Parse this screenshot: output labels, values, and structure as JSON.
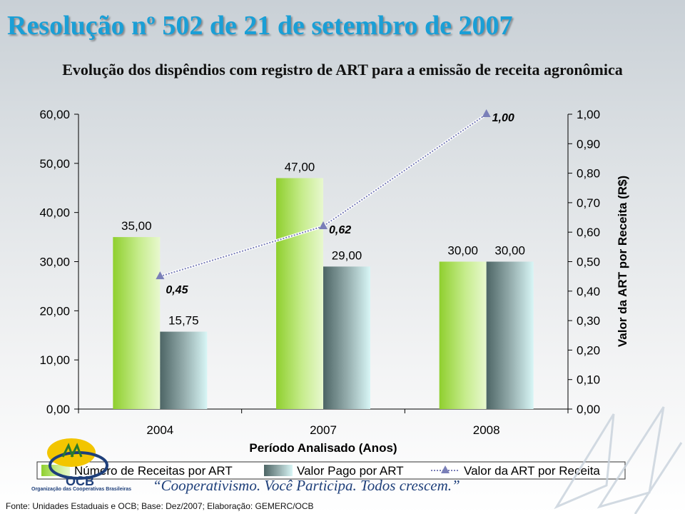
{
  "slide": {
    "title": "Resolução nº 502 de 21 de setembro de 2007",
    "source_text": "Fonte: Unidades Estaduais e OCB; Base: Dez/2007;    Elaboração: GEMERC/OCB",
    "slogan": "“Cooperativismo. Você Participa. Todos crescem.”",
    "logo_word": "OCB",
    "logo_subtext": "Organização das Cooperativas Brasileiras"
  },
  "chart_data": {
    "type": "bar",
    "title": "Evolução dos dispêndios com registro de ART para a emissão de receita agronômica",
    "categories": [
      "2004",
      "2007",
      "2008"
    ],
    "xlabel": "Período Analisado (Anos)",
    "ylabel": "",
    "y2label": "Valor da ART por Receita (R$)",
    "ylim": [
      0,
      60
    ],
    "y2lim": [
      0,
      1
    ],
    "yticks": [
      "0,00",
      "10,00",
      "20,00",
      "30,00",
      "40,00",
      "50,00",
      "60,00"
    ],
    "y2ticks": [
      "0,00",
      "0,10",
      "0,20",
      "0,30",
      "0,40",
      "0,50",
      "0,60",
      "0,70",
      "0,80",
      "0,90",
      "1,00"
    ],
    "series": [
      {
        "name": "Número de Receitas por ART",
        "type": "bar",
        "axis": "left",
        "values": [
          35,
          47,
          30
        ],
        "labels": [
          "35,00",
          "47,00",
          "30,00"
        ],
        "color": "#9fd84a"
      },
      {
        "name": "Valor Pago por ART",
        "type": "bar",
        "axis": "left",
        "values": [
          15.75,
          29,
          30
        ],
        "labels": [
          "15,75",
          "29,00",
          "30,00"
        ],
        "color": "#6f8f8f"
      },
      {
        "name": "Valor da ART por Receita",
        "type": "line",
        "axis": "right",
        "values": [
          0.45,
          0.62,
          1.0
        ],
        "labels": [
          "0,45",
          "0,62",
          "1,00"
        ],
        "color": "#7a7fb8"
      }
    ],
    "legend_position": "bottom"
  }
}
